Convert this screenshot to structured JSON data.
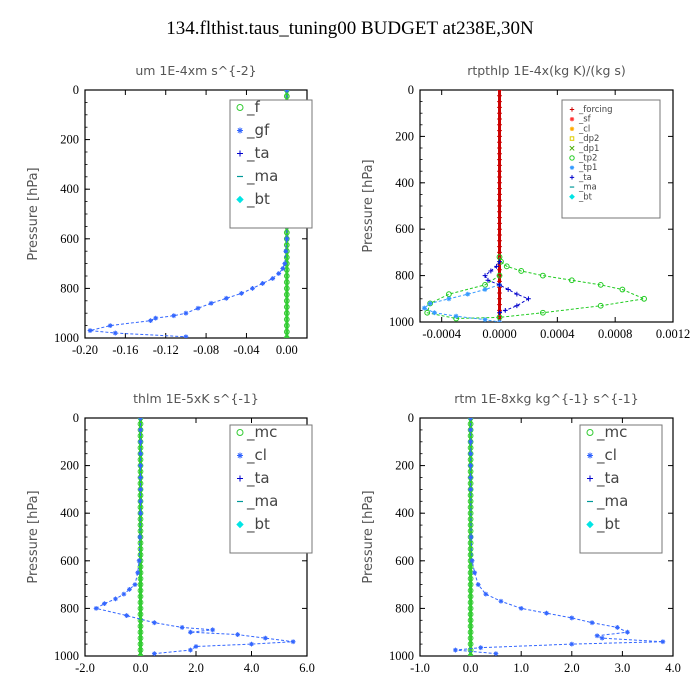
{
  "title": "134.flthist.taus_tuning00  BUDGET at238E,30N",
  "chart_data": [
    {
      "type": "line",
      "title": "um  1E-4xm s^{-2}",
      "ylabel": "Pressure [hPa]",
      "xlim": [
        -0.2,
        0.02
      ],
      "ylim": [
        1000,
        0
      ],
      "xticks": [
        "-0.20",
        "-0.16",
        "-0.12",
        "-0.08",
        "-0.04",
        "0.00"
      ],
      "xtick_values": [
        -0.2,
        -0.16,
        -0.12,
        -0.08,
        -0.04,
        0.0
      ],
      "yticks": [
        "0",
        "200",
        "400",
        "600",
        "800",
        "1000"
      ],
      "ytick_values": [
        0,
        200,
        400,
        600,
        800,
        1000
      ],
      "legend_position": "top-right",
      "series": [
        {
          "name": "_f",
          "color": "#33cc33",
          "marker": "circle",
          "x": [
            0,
            0,
            0,
            0,
            0,
            0,
            0,
            0,
            0,
            0,
            0,
            0,
            0,
            0,
            0,
            0,
            0,
            0,
            0,
            0,
            0,
            0,
            0,
            0,
            0,
            0,
            0,
            0,
            0,
            0,
            0,
            0,
            0,
            0,
            0,
            0,
            0,
            0,
            0,
            0,
            0
          ],
          "y": [
            0,
            25,
            50,
            75,
            100,
            125,
            150,
            175,
            200,
            225,
            250,
            275,
            300,
            325,
            350,
            375,
            400,
            425,
            450,
            475,
            500,
            525,
            550,
            575,
            600,
            625,
            650,
            675,
            700,
            725,
            750,
            775,
            800,
            825,
            850,
            875,
            900,
            925,
            950,
            975,
            1000
          ]
        },
        {
          "name": "_gf",
          "color": "#3366ff",
          "marker": "star",
          "x": [
            0,
            0,
            0,
            0,
            0,
            0,
            0,
            0,
            0,
            0,
            0,
            0,
            0,
            -0.001,
            -0.002,
            -0.004,
            -0.008,
            -0.014,
            -0.024,
            -0.034,
            -0.045,
            -0.06,
            -0.075,
            -0.088,
            -0.1,
            -0.112,
            -0.13,
            -0.135,
            -0.175,
            -0.195,
            -0.17,
            -0.1
          ],
          "y": [
            0,
            50,
            100,
            150,
            200,
            250,
            300,
            350,
            400,
            450,
            500,
            550,
            600,
            650,
            700,
            720,
            740,
            760,
            780,
            800,
            820,
            840,
            860,
            880,
            900,
            910,
            920,
            930,
            950,
            970,
            980,
            995
          ]
        },
        {
          "name": "_ta",
          "color": "#0000cc",
          "marker": "plus",
          "x": [],
          "y": []
        },
        {
          "name": "_ma",
          "color": "#009999",
          "marker": "dash",
          "x": [],
          "y": []
        },
        {
          "name": "_bt",
          "color": "#00e5e5",
          "marker": "diamond",
          "x": [],
          "y": []
        }
      ]
    },
    {
      "type": "line",
      "title": "rtpthlp  1E-4x(kg K)/(kg s)",
      "ylabel": "Pressure [hPa]",
      "xlim": [
        -0.00055,
        0.0012
      ],
      "ylim": [
        1000,
        0
      ],
      "xticks": [
        "-0.0004",
        "0.0000",
        "0.0004",
        "0.0008",
        "0.0012"
      ],
      "xtick_values": [
        -0.0004,
        0.0,
        0.0004,
        0.0008,
        0.0012
      ],
      "yticks": [
        "0",
        "200",
        "400",
        "600",
        "800",
        "1000"
      ],
      "ytick_values": [
        0,
        200,
        400,
        600,
        800,
        1000
      ],
      "legend_position": "top-right",
      "series": [
        {
          "name": "_forcing",
          "color": "#cc0000",
          "marker": "plus",
          "x": [
            0,
            0,
            0,
            0,
            0,
            0,
            0,
            0,
            0,
            0,
            0,
            0,
            0,
            0,
            0,
            0,
            0,
            0,
            0,
            0,
            0,
            0,
            0,
            0,
            0,
            0,
            0,
            0,
            0,
            0,
            0,
            0,
            0,
            0,
            0,
            0,
            0,
            0,
            0,
            0,
            0
          ],
          "y": [
            0,
            25,
            50,
            75,
            100,
            125,
            150,
            175,
            200,
            225,
            250,
            275,
            300,
            325,
            350,
            375,
            400,
            425,
            450,
            475,
            500,
            525,
            550,
            575,
            600,
            625,
            650,
            675,
            700,
            725,
            750,
            775,
            800,
            825,
            850,
            875,
            900,
            925,
            950,
            975,
            1000
          ]
        },
        {
          "name": "_sf",
          "color": "#ff3333",
          "marker": "star",
          "x": [],
          "y": []
        },
        {
          "name": "_cl",
          "color": "#ffaa00",
          "marker": "star",
          "x": [],
          "y": []
        },
        {
          "name": "_dp2",
          "color": "#ddcc00",
          "marker": "square",
          "x": [],
          "y": []
        },
        {
          "name": "_dp1",
          "color": "#44aa00",
          "marker": "cross",
          "x": [],
          "y": []
        },
        {
          "name": "_tp2",
          "color": "#22cc22",
          "marker": "circle",
          "x": [
            0,
            1e-05,
            5e-05,
            0.00015,
            0.0003,
            0.0005,
            0.0007,
            0.00085,
            0.001,
            0.0007,
            0.0003,
            0,
            -0.0003,
            -0.0005,
            -0.00048,
            -0.00035,
            -0.0001,
            0
          ],
          "y": [
            720,
            740,
            760,
            780,
            800,
            820,
            840,
            860,
            900,
            930,
            960,
            980,
            985,
            960,
            920,
            880,
            840,
            800
          ]
        },
        {
          "name": "_tp1",
          "color": "#3399ff",
          "marker": "star",
          "x": [
            0,
            -0.0001,
            -0.00022,
            -0.00035,
            -0.00048,
            -0.00052,
            -0.00045,
            -0.0003,
            -0.0001,
            0
          ],
          "y": [
            840,
            860,
            880,
            900,
            920,
            940,
            960,
            975,
            990,
            1000
          ]
        },
        {
          "name": "_ta",
          "color": "#0000cc",
          "marker": "plus",
          "x": [
            0,
            -2e-05,
            -6e-05,
            -0.0001,
            -8e-05,
            0,
            6e-05,
            0.00012,
            0.0002,
            0.00012,
            4e-05,
            0
          ],
          "y": [
            740,
            760,
            780,
            800,
            820,
            840,
            860,
            880,
            900,
            930,
            950,
            960
          ]
        },
        {
          "name": "_ma",
          "color": "#009999",
          "marker": "dash",
          "x": [],
          "y": []
        },
        {
          "name": "_bt",
          "color": "#00e5e5",
          "marker": "diamond",
          "x": [],
          "y": []
        }
      ]
    },
    {
      "type": "line",
      "title": "thlm  1E-5xK s^{-1}",
      "ylabel": "Pressure [hPa]",
      "xlim": [
        -2.0,
        6.0
      ],
      "ylim": [
        1000,
        0
      ],
      "xticks": [
        "-2.0",
        "0.0",
        "2.0",
        "4.0",
        "6.0"
      ],
      "xtick_values": [
        -2.0,
        0.0,
        2.0,
        4.0,
        6.0
      ],
      "yticks": [
        "0",
        "200",
        "400",
        "600",
        "800",
        "1000"
      ],
      "ytick_values": [
        0,
        200,
        400,
        600,
        800,
        1000
      ],
      "legend_position": "top-right",
      "series": [
        {
          "name": "_mc",
          "color": "#33cc33",
          "marker": "circle",
          "x": [
            0,
            0,
            0,
            0,
            0,
            0,
            0,
            0,
            0,
            0,
            0,
            0,
            0,
            0,
            0,
            0,
            0,
            0,
            0,
            0,
            0,
            0,
            0,
            0,
            0,
            0,
            0,
            0,
            0,
            0,
            0,
            0,
            0,
            0,
            0,
            0,
            0,
            0,
            0,
            0,
            0
          ],
          "y": [
            0,
            25,
            50,
            75,
            100,
            125,
            150,
            175,
            200,
            225,
            250,
            275,
            300,
            325,
            350,
            375,
            400,
            425,
            450,
            475,
            500,
            525,
            550,
            575,
            600,
            625,
            650,
            675,
            700,
            725,
            750,
            775,
            800,
            825,
            850,
            875,
            900,
            925,
            950,
            975,
            1000
          ]
        },
        {
          "name": "_cl",
          "color": "#3366ff",
          "marker": "star",
          "x": [
            0,
            0,
            0,
            0,
            0,
            0,
            0,
            0,
            0,
            -0.02,
            -0.05,
            -0.1,
            -0.2,
            -0.4,
            -0.6,
            -0.9,
            -1.3,
            -1.6,
            -0.5,
            0.5,
            1.5,
            2.6,
            1.8,
            3.5,
            4.5,
            5.5,
            4.0,
            2.0,
            1.8,
            0.5
          ],
          "y": [
            0,
            50,
            100,
            150,
            200,
            250,
            300,
            350,
            400,
            500,
            600,
            650,
            700,
            720,
            740,
            760,
            780,
            800,
            830,
            860,
            880,
            890,
            900,
            910,
            925,
            940,
            950,
            960,
            975,
            990
          ]
        },
        {
          "name": "_ta",
          "color": "#0000cc",
          "marker": "plus",
          "x": [],
          "y": []
        },
        {
          "name": "_ma",
          "color": "#009999",
          "marker": "dash",
          "x": [],
          "y": []
        },
        {
          "name": "_bt",
          "color": "#00e5e5",
          "marker": "diamond",
          "x": [],
          "y": []
        }
      ]
    },
    {
      "type": "line",
      "title": "rtm  1E-8xkg kg^{-1} s^{-1}",
      "ylabel": "Pressure [hPa]",
      "xlim": [
        -1.0,
        4.0
      ],
      "ylim": [
        1000,
        0
      ],
      "xticks": [
        "-1.0",
        "0.0",
        "1.0",
        "2.0",
        "3.0",
        "4.0"
      ],
      "xtick_values": [
        -1.0,
        0.0,
        1.0,
        2.0,
        3.0,
        4.0
      ],
      "yticks": [
        "0",
        "200",
        "400",
        "600",
        "800",
        "1000"
      ],
      "ytick_values": [
        0,
        200,
        400,
        600,
        800,
        1000
      ],
      "legend_position": "top-right",
      "series": [
        {
          "name": "_mc",
          "color": "#33cc33",
          "marker": "circle",
          "x": [
            0,
            0,
            0,
            0,
            0,
            0,
            0,
            0,
            0,
            0,
            0,
            0,
            0,
            0,
            0,
            0,
            0,
            0,
            0,
            0,
            0,
            0,
            0,
            0,
            0,
            0,
            0,
            0,
            0,
            0,
            0,
            0,
            0,
            0,
            0,
            0,
            0,
            0,
            0,
            0,
            0
          ],
          "y": [
            0,
            25,
            50,
            75,
            100,
            125,
            150,
            175,
            200,
            225,
            250,
            275,
            300,
            325,
            350,
            375,
            400,
            425,
            450,
            475,
            500,
            525,
            550,
            575,
            600,
            625,
            650,
            675,
            700,
            725,
            750,
            775,
            800,
            825,
            850,
            875,
            900,
            925,
            950,
            975,
            1000
          ]
        },
        {
          "name": "_cl",
          "color": "#3366ff",
          "marker": "star",
          "x": [
            0,
            0,
            0,
            0,
            0,
            0,
            0,
            0.01,
            0.03,
            0.08,
            0.15,
            0.3,
            0.6,
            1.0,
            1.5,
            2.0,
            2.4,
            2.9,
            3.1,
            2.5,
            2.6,
            3.8,
            2.0,
            0.2,
            -0.3,
            0.5
          ],
          "y": [
            0,
            50,
            100,
            150,
            200,
            250,
            300,
            500,
            600,
            650,
            700,
            740,
            770,
            800,
            820,
            840,
            860,
            880,
            900,
            915,
            925,
            940,
            950,
            965,
            975,
            990
          ]
        },
        {
          "name": "_ta",
          "color": "#0000cc",
          "marker": "plus",
          "x": [],
          "y": []
        },
        {
          "name": "_ma",
          "color": "#009999",
          "marker": "dash",
          "x": [],
          "y": []
        },
        {
          "name": "_bt",
          "color": "#00e5e5",
          "marker": "diamond",
          "x": [],
          "y": []
        }
      ]
    }
  ]
}
